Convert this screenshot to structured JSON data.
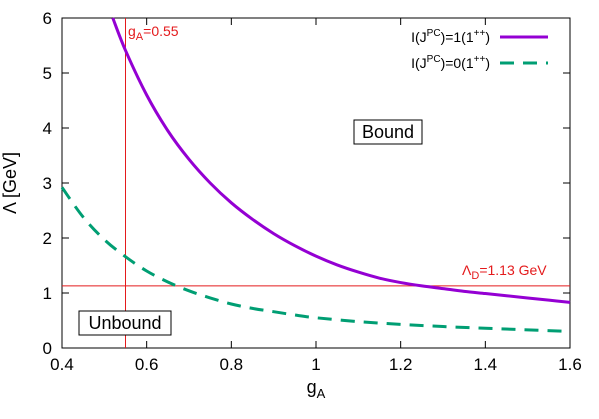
{
  "chart_data": {
    "type": "line",
    "xlabel_main": "g",
    "xlabel_sub": "A",
    "ylabel": "Λ [GeV]",
    "xlim": [
      0.4,
      1.6
    ],
    "ylim": [
      0,
      6
    ],
    "xticks": [
      "0.4",
      "0.6",
      "0.8",
      "1",
      "1.2",
      "1.4",
      "1.6"
    ],
    "xtick_values": [
      0.4,
      0.6,
      0.8,
      1.0,
      1.2,
      1.4,
      1.6
    ],
    "yticks": [
      "0",
      "1",
      "2",
      "3",
      "4",
      "5",
      "6"
    ],
    "ytick_values": [
      0,
      1,
      2,
      3,
      4,
      5,
      6
    ],
    "grid": false,
    "legend_position": "top-right",
    "series": [
      {
        "name": "I(J^PC)=1(1^++)",
        "legend": {
          "pre": "I(J",
          "sup1": "PC",
          "mid": ")=1(1",
          "sup2": "++",
          "post": ")"
        },
        "color": "#9400d3",
        "dash": "solid",
        "x": [
          0.52,
          0.55,
          0.6,
          0.65,
          0.7,
          0.75,
          0.8,
          0.85,
          0.9,
          0.95,
          1.0,
          1.05,
          1.1,
          1.15,
          1.2,
          1.25,
          1.3,
          1.35,
          1.4,
          1.45,
          1.5,
          1.55,
          1.6
        ],
        "y": [
          6.0,
          5.41,
          4.6,
          3.95,
          3.43,
          3.0,
          2.64,
          2.34,
          2.08,
          1.86,
          1.67,
          1.51,
          1.38,
          1.27,
          1.19,
          1.13,
          1.08,
          1.03,
          0.99,
          0.95,
          0.91,
          0.87,
          0.83
        ]
      },
      {
        "name": "I(J^PC)=0(1^++)",
        "legend": {
          "pre": "I(J",
          "sup1": "PC",
          "mid": ")=0(1",
          "sup2": "++",
          "post": ")"
        },
        "color": "#009e73",
        "dash": "dashed",
        "x": [
          0.4,
          0.45,
          0.5,
          0.55,
          0.6,
          0.65,
          0.7,
          0.75,
          0.8,
          0.85,
          0.9,
          0.95,
          1.0,
          1.1,
          1.2,
          1.3,
          1.4,
          1.5,
          1.6
        ],
        "y": [
          2.92,
          2.38,
          1.97,
          1.66,
          1.4,
          1.2,
          1.04,
          0.91,
          0.8,
          0.72,
          0.66,
          0.6,
          0.55,
          0.48,
          0.43,
          0.39,
          0.36,
          0.33,
          0.3
        ]
      }
    ],
    "reference_lines": {
      "vertical": {
        "x": 0.55,
        "color": "#e41a1c",
        "label_main": "g",
        "label_sub": "A",
        "label_post": "=0.55"
      },
      "horizontal": {
        "y": 1.13,
        "color": "#e41a1c",
        "label_main": "Λ",
        "label_sub": "D",
        "label_post": "=1.13 GeV"
      }
    },
    "regions": {
      "bound": "Bound",
      "unbound": "Unbound"
    }
  }
}
